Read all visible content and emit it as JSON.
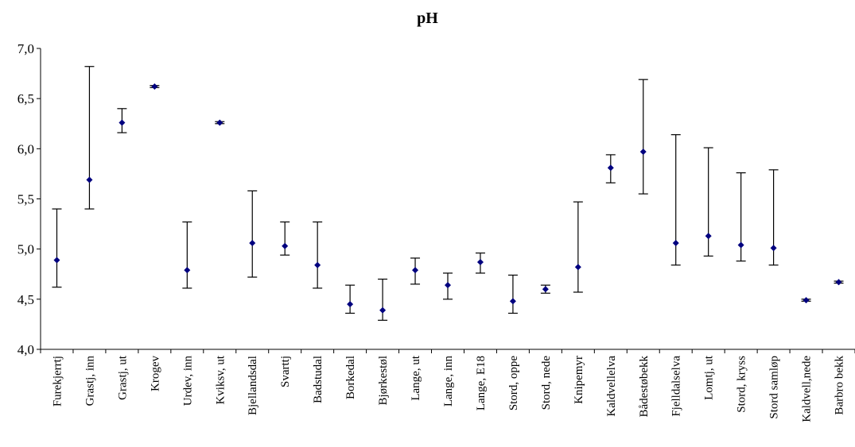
{
  "chart_data": {
    "type": "scatter",
    "title": "pH",
    "xlabel": "",
    "ylabel": "",
    "ylim": [
      4.0,
      7.0
    ],
    "yticks": [
      "4,0",
      "4,5",
      "5,0",
      "5,5",
      "6,0",
      "6,5",
      "7,0"
    ],
    "grid": false,
    "legend": "none",
    "colors": {
      "marker": "#00007f",
      "errorbar": "#000000"
    },
    "categories": [
      "Furekjerrtj",
      "Grastj, inn",
      "Grastj, ut",
      "Krogev",
      "Urdev, inn",
      "Kviksv, ut",
      "Bjellandsdal",
      "Svarttj",
      "Badstudal",
      "Borkedal",
      "Bjørkestøl",
      "Lange, ut",
      "Lange, inn",
      "Lange, E18",
      "Stord, oppe",
      "Stord, nede",
      "Knipemyr",
      "Kaldvellelva",
      "Bådestøbekk",
      "Fjelldalselva",
      "Lomtj, ut",
      "Stord, kryss",
      "Stord samløp",
      "Kaldvell,nede",
      "Barbro bekk"
    ],
    "values": [
      4.89,
      5.69,
      6.26,
      6.62,
      4.79,
      6.26,
      5.06,
      5.03,
      4.84,
      4.45,
      4.39,
      4.79,
      4.64,
      4.87,
      4.48,
      4.6,
      4.82,
      5.81,
      5.97,
      5.06,
      5.13,
      5.04,
      5.01,
      4.49,
      4.67
    ],
    "min": [
      4.62,
      5.4,
      6.16,
      6.61,
      4.61,
      6.25,
      4.72,
      4.94,
      4.61,
      4.36,
      4.29,
      4.65,
      4.5,
      4.76,
      4.36,
      4.56,
      4.57,
      5.66,
      5.55,
      4.84,
      4.93,
      4.88,
      4.84,
      4.48,
      4.66
    ],
    "max": [
      5.4,
      6.82,
      6.4,
      6.63,
      5.27,
      6.27,
      5.58,
      5.27,
      5.27,
      4.64,
      4.7,
      4.91,
      4.76,
      4.96,
      4.74,
      4.64,
      5.47,
      5.94,
      6.69,
      6.14,
      6.01,
      5.76,
      5.79,
      4.5,
      4.68
    ]
  }
}
